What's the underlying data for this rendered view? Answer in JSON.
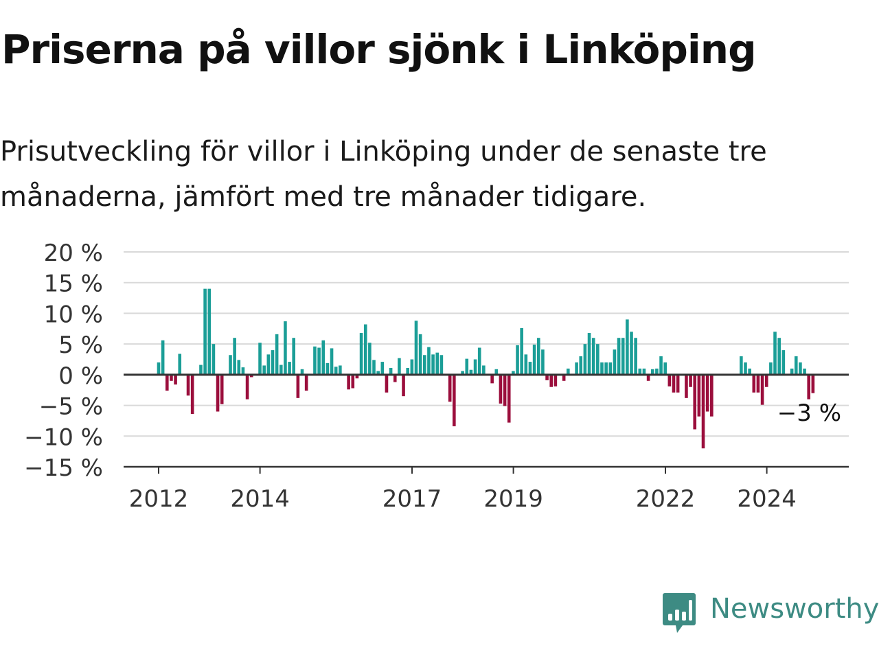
{
  "header": {
    "title": "Priserna på villor sjönk i Linköping",
    "subtitle": "Prisutveckling för villor i Linköping under de senaste tre månaderna, jämfört med tre månader tidigare."
  },
  "brand": {
    "name": "Newsworthy",
    "icon": "newsworthy-logo-icon",
    "color": "#3d8b83"
  },
  "colors": {
    "positive": "#1b9e97",
    "negative": "#9b0e3c",
    "grid": "#d9d9d9",
    "axis": "#333333"
  },
  "chart_data": {
    "type": "bar",
    "ylim": [
      -15,
      20
    ],
    "yticks": [
      20,
      15,
      10,
      5,
      0,
      -5,
      -10,
      -15
    ],
    "ytick_labels": [
      "20 %",
      "15 %",
      "10 %",
      "5 %",
      "0 %",
      "−5 %",
      "−10 %",
      "−15 %"
    ],
    "xticks": [
      2012,
      2014,
      2017,
      2019,
      2022,
      2024
    ],
    "x_start": 2011.75,
    "step": 0.0833,
    "last_value_label": "−3 %",
    "values": [
      0,
      0,
      0,
      2,
      5.6,
      -2.6,
      -1,
      -1.6,
      3.4,
      0,
      -3.4,
      -6.4,
      0,
      1.6,
      14,
      14,
      5,
      -6,
      -4.8,
      0,
      3.2,
      6,
      2.4,
      1.2,
      -4,
      -0.4,
      0,
      5.2,
      1.5,
      3.3,
      4,
      6.6,
      1.6,
      8.7,
      2.1,
      6,
      -3.8,
      0.9,
      -2.6,
      0,
      4.6,
      4.4,
      5.6,
      1.9,
      4.3,
      1.3,
      1.5,
      0,
      -2.4,
      -2.2,
      -0.6,
      6.8,
      8.2,
      5.2,
      2.4,
      0.6,
      2.1,
      -2.9,
      1.1,
      -1.2,
      2.7,
      -3.5,
      1.1,
      2.5,
      8.8,
      6.6,
      3.2,
      4.5,
      3.3,
      3.6,
      3.2,
      0,
      -4.4,
      -8.4,
      0,
      0.6,
      2.6,
      0.8,
      2.5,
      4.4,
      1.5,
      0,
      -1.4,
      0.9,
      -4.7,
      -5.1,
      -7.8,
      0.6,
      4.8,
      7.6,
      3.3,
      2.1,
      4.9,
      6,
      4.1,
      -0.9,
      -2,
      -1.9,
      0,
      -1,
      1,
      0,
      2,
      3,
      5,
      6.8,
      6,
      5,
      2,
      2,
      2,
      4.1,
      6,
      6,
      9,
      7,
      6,
      1,
      1,
      -1,
      0.9,
      1,
      3,
      2,
      -1.9,
      -2.9,
      -2.9,
      0,
      -3.8,
      -2,
      -8.9,
      -6.8,
      -12,
      -6,
      -6.8,
      0,
      0,
      0,
      0,
      0,
      0,
      3,
      2,
      1,
      -2.9,
      -2.9,
      -4.9,
      -2,
      2,
      7,
      6,
      4,
      0,
      1,
      3,
      2,
      1,
      -4,
      -3
    ]
  }
}
